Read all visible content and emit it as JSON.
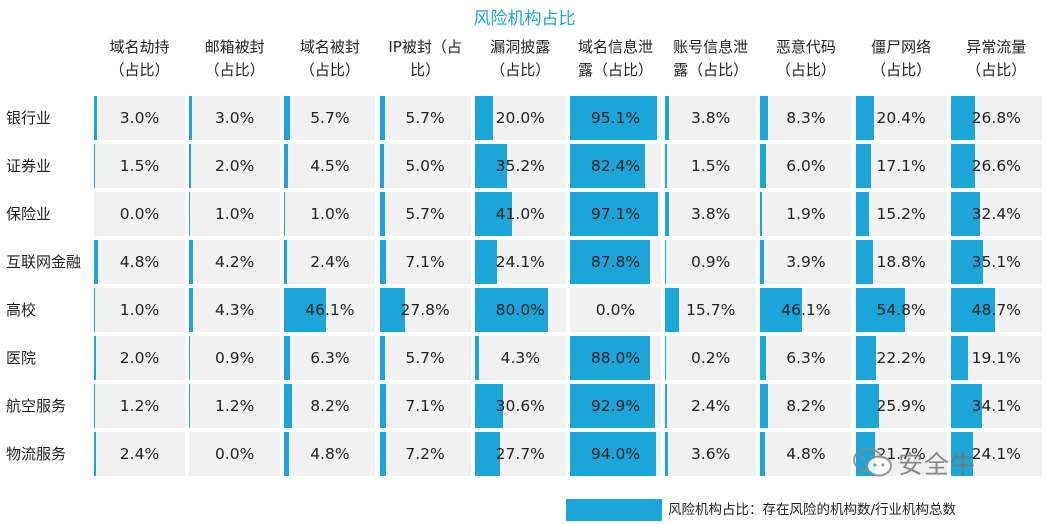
{
  "chart_data": {
    "type": "table",
    "title": "风险机构占比",
    "columns": [
      {
        "line1": "域名劫持",
        "line2": "（占比）"
      },
      {
        "line1": "邮箱被封",
        "line2": "（占比）"
      },
      {
        "line1": "域名被封",
        "line2": "（占比）"
      },
      {
        "line1": "IP被封（占",
        "line2": "比）"
      },
      {
        "line1": "漏洞披露",
        "line2": "（占比）"
      },
      {
        "line1": "域名信息泄",
        "line2": "露（占比）"
      },
      {
        "line1": "账号信息泄",
        "line2": "露（占比）"
      },
      {
        "line1": "恶意代码",
        "line2": "（占比）"
      },
      {
        "line1": "僵尸网络",
        "line2": "（占比）"
      },
      {
        "line1": "异常流量",
        "line2": "（占比）"
      }
    ],
    "rows": [
      {
        "label": "银行业",
        "values": [
          3.0,
          3.0,
          5.7,
          5.7,
          20.0,
          95.1,
          3.8,
          8.3,
          20.4,
          26.8
        ],
        "text": [
          "3.0%",
          "3.0%",
          "5.7%",
          "5.7%",
          "20.0%",
          "95.1%",
          "3.8%",
          "8.3%",
          "20.4%",
          "26.8%"
        ]
      },
      {
        "label": "证券业",
        "values": [
          1.5,
          2.0,
          4.5,
          5.0,
          35.2,
          82.4,
          1.5,
          6.0,
          17.1,
          26.6
        ],
        "text": [
          "1.5%",
          "2.0%",
          "4.5%",
          "5.0%",
          "35.2%",
          "82.4%",
          "1.5%",
          "6.0%",
          "17.1%",
          "26.6%"
        ]
      },
      {
        "label": "保险业",
        "values": [
          0.0,
          1.0,
          1.0,
          5.7,
          41.0,
          97.1,
          3.8,
          1.9,
          15.2,
          32.4
        ],
        "text": [
          "0.0%",
          "1.0%",
          "1.0%",
          "5.7%",
          "41.0%",
          "97.1%",
          "3.8%",
          "1.9%",
          "15.2%",
          "32.4%"
        ]
      },
      {
        "label": "互联网金融",
        "values": [
          4.8,
          4.2,
          2.4,
          7.1,
          24.1,
          87.8,
          0.9,
          3.9,
          18.8,
          35.1
        ],
        "text": [
          "4.8%",
          "4.2%",
          "2.4%",
          "7.1%",
          "24.1%",
          "87.8%",
          "0.9%",
          "3.9%",
          "18.8%",
          "35.1%"
        ]
      },
      {
        "label": "高校",
        "values": [
          1.0,
          4.3,
          46.1,
          27.8,
          80.0,
          0.0,
          15.7,
          46.1,
          54.8,
          48.7
        ],
        "text": [
          "1.0%",
          "4.3%",
          "46.1%",
          "27.8%",
          "80.0%",
          "0.0%",
          "15.7%",
          "46.1%",
          "54.8%",
          "48.7%"
        ]
      },
      {
        "label": "医院",
        "values": [
          2.0,
          0.9,
          6.3,
          5.7,
          4.3,
          88.0,
          0.2,
          6.3,
          22.2,
          19.1
        ],
        "text": [
          "2.0%",
          "0.9%",
          "6.3%",
          "5.7%",
          "4.3%",
          "88.0%",
          "0.2%",
          "6.3%",
          "22.2%",
          "19.1%"
        ]
      },
      {
        "label": "航空服务",
        "values": [
          1.2,
          1.2,
          8.2,
          7.1,
          30.6,
          92.9,
          2.4,
          8.2,
          25.9,
          34.1
        ],
        "text": [
          "1.2%",
          "1.2%",
          "8.2%",
          "7.1%",
          "30.6%",
          "92.9%",
          "2.4%",
          "8.2%",
          "25.9%",
          "34.1%"
        ]
      },
      {
        "label": "物流服务",
        "values": [
          2.4,
          0.0,
          4.8,
          7.2,
          27.7,
          94.0,
          3.6,
          4.8,
          21.7,
          24.1
        ],
        "text": [
          "2.4%",
          "0.0%",
          "4.8%",
          "7.2%",
          "27.7%",
          "94.0%",
          "3.6%",
          "4.8%",
          "21.7%",
          "24.1%"
        ]
      }
    ],
    "value_max": 100,
    "legend": "风险机构占比：存在风险的机构数/行业机构总数",
    "legend_position": "bottom-right",
    "bar_color": "#1ba5d8",
    "cell_background": "#f1f1f1"
  },
  "watermark": {
    "text": "安全牛",
    "icon": "wechat-icon"
  }
}
